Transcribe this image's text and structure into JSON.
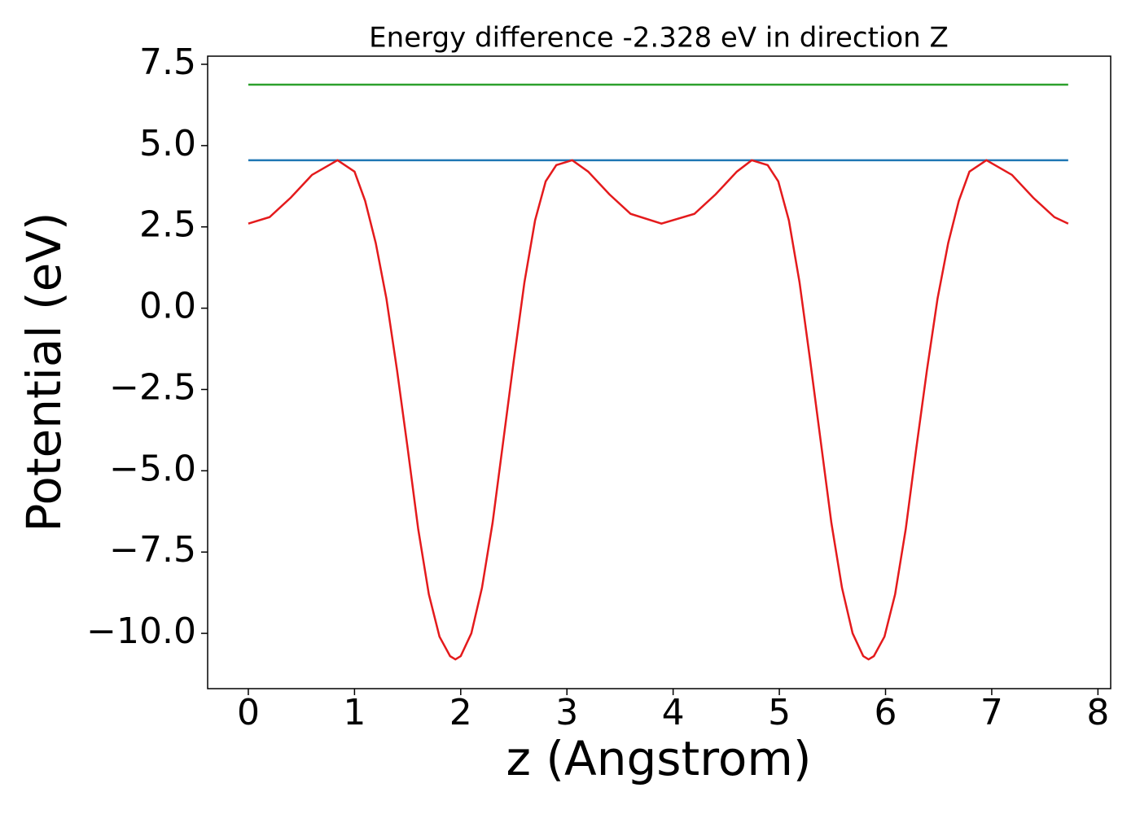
{
  "chart_data": {
    "type": "line",
    "title": "Energy difference -2.328 eV in direction Z",
    "x_label": "z (Angstrom)",
    "y_label": "Potential (eV)",
    "xlim": [
      -0.383,
      8.12
    ],
    "ylim": [
      -11.7,
      7.75
    ],
    "xticks": [
      0,
      1,
      2,
      3,
      4,
      5,
      6,
      7,
      8
    ],
    "yticks": [
      {
        "value": -10,
        "label": "−10.0"
      },
      {
        "value": -7.5,
        "label": "−7.5"
      },
      {
        "value": -5,
        "label": "−5.0"
      },
      {
        "value": -2.5,
        "label": "−2.5"
      },
      {
        "value": 0,
        "label": "0.0"
      },
      2.5,
      {
        "value": 5,
        "label": "5.0"
      },
      7.5
    ],
    "series": [
      {
        "color": "#2ca02c",
        "x": [
          0,
          7.72
        ],
        "values": [
          6.875,
          6.875
        ]
      },
      {
        "color": "#1f77b4",
        "x": [
          0,
          7.72
        ],
        "values": [
          4.55,
          4.55
        ]
      },
      {
        "color": "#e41a1c",
        "x": [
          0,
          0.2,
          0.4,
          0.6,
          0.84,
          1.0,
          1.1,
          1.2,
          1.3,
          1.4,
          1.5,
          1.6,
          1.7,
          1.8,
          1.9,
          1.95,
          2.0,
          2.1,
          2.2,
          2.3,
          2.4,
          2.5,
          2.6,
          2.7,
          2.8,
          2.9,
          3.05,
          3.2,
          3.4,
          3.6,
          3.89,
          4.2,
          4.4,
          4.6,
          4.74,
          4.89,
          4.99,
          5.09,
          5.19,
          5.29,
          5.39,
          5.49,
          5.59,
          5.69,
          5.79,
          5.84,
          5.89,
          5.99,
          6.09,
          6.19,
          6.29,
          6.39,
          6.49,
          6.59,
          6.69,
          6.79,
          6.95,
          7.19,
          7.39,
          7.59,
          7.72
        ],
        "values": [
          2.6,
          2.8,
          3.4,
          4.1,
          4.55,
          4.2,
          3.3,
          2.0,
          0.3,
          -1.9,
          -4.3,
          -6.8,
          -8.8,
          -10.1,
          -10.7,
          -10.8,
          -10.7,
          -10.0,
          -8.6,
          -6.6,
          -4.1,
          -1.6,
          0.8,
          2.7,
          3.9,
          4.4,
          4.55,
          4.2,
          3.5,
          2.9,
          2.6,
          2.9,
          3.5,
          4.2,
          4.55,
          4.4,
          3.9,
          2.7,
          0.8,
          -1.6,
          -4.1,
          -6.6,
          -8.6,
          -10.0,
          -10.7,
          -10.8,
          -10.7,
          -10.1,
          -8.8,
          -6.8,
          -4.3,
          -1.9,
          0.3,
          2.0,
          3.3,
          4.2,
          4.55,
          4.1,
          3.4,
          2.8,
          2.6
        ]
      }
    ]
  }
}
